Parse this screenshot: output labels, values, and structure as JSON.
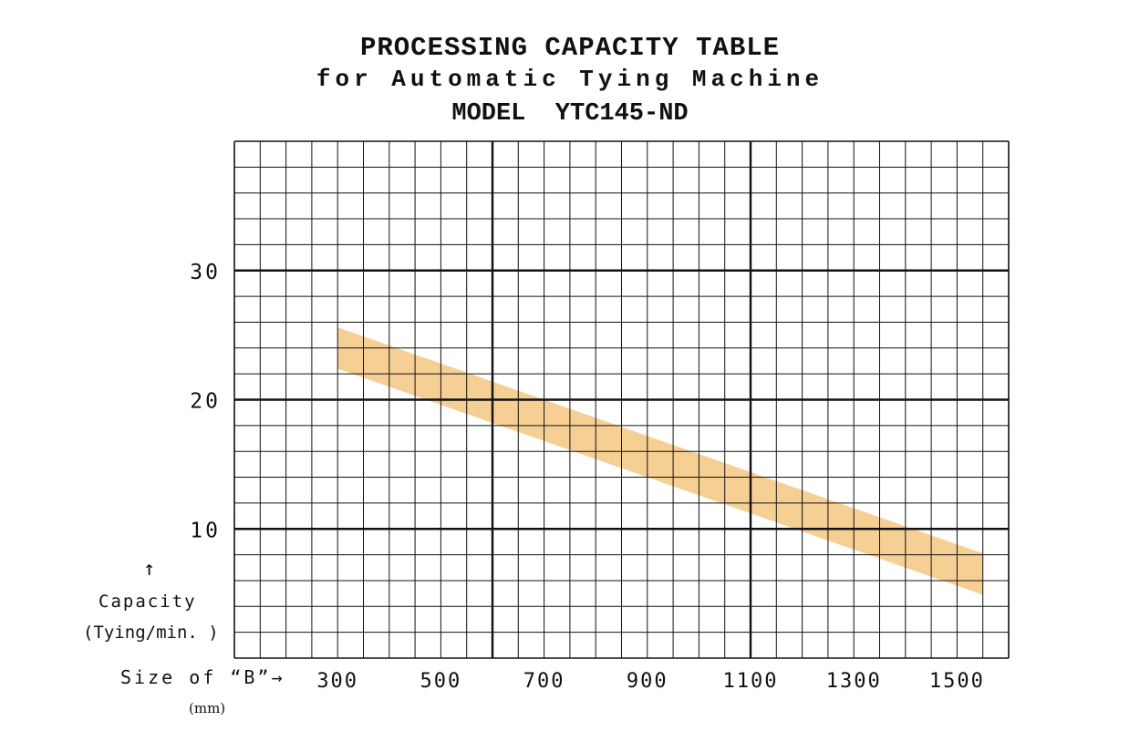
{
  "title": {
    "line1": "PROCESSING CAPACITY TABLE",
    "line2": "for Automatic Tying Machine",
    "line3": "MODEL  YTC145-ND"
  },
  "ylabel": {
    "arrow": "↑",
    "line1": "Capacity",
    "line2": "(Tying/min. )"
  },
  "xlabel": {
    "text": "Size of “B”→",
    "unit": "(mm)"
  },
  "colors": {
    "band": "#f6cf94",
    "grid": "#111111",
    "background": "#ffffff"
  },
  "chart_data": {
    "type": "area",
    "title": "PROCESSING CAPACITY TABLE for Automatic Tying Machine MODEL YTC145-ND",
    "xlabel": "Size of “B” (mm)",
    "ylabel": "Capacity (Tying/min.)",
    "xlim": [
      100,
      1600
    ],
    "ylim": [
      0,
      40
    ],
    "x_ticks": [
      300,
      500,
      700,
      900,
      1100,
      1300,
      1500
    ],
    "y_ticks": [
      10,
      20,
      30
    ],
    "grid": true,
    "series": [
      {
        "upper": [
          [
            300,
            25.6
          ],
          [
            1550,
            8.1
          ]
        ],
        "lower": [
          [
            300,
            22.4
          ],
          [
            1550,
            4.9
          ]
        ]
      }
    ]
  }
}
